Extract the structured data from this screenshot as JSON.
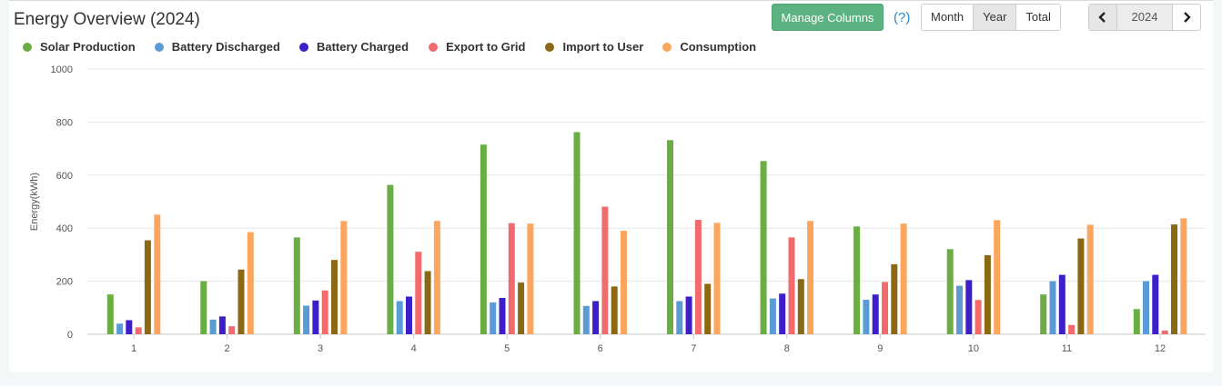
{
  "header": {
    "title": "Energy Overview (2024)",
    "manage_columns_label": "Manage Columns",
    "help_label": "(?)",
    "period_tabs": [
      {
        "label": "Month",
        "active": false
      },
      {
        "label": "Year",
        "active": true
      },
      {
        "label": "Total",
        "active": false
      }
    ],
    "year_value": "2024",
    "prev_icon": "chevron-left-icon",
    "next_icon": "chevron-right-icon"
  },
  "colors": {
    "accent_button": "#5cb381",
    "help_link": "#2a88c9"
  },
  "chart_data": {
    "type": "bar",
    "title": "",
    "xlabel": "",
    "ylabel": "Energy(kWh)",
    "ylim": [
      0,
      1000
    ],
    "yticks": [
      0,
      200,
      400,
      600,
      800,
      1000
    ],
    "grid": true,
    "legend_position": "top-left",
    "categories": [
      "1",
      "2",
      "3",
      "4",
      "5",
      "6",
      "7",
      "8",
      "9",
      "10",
      "11",
      "12"
    ],
    "series": [
      {
        "name": "Solar Production",
        "color": "#6aad43",
        "values": [
          150,
          200,
          365,
          563,
          715,
          762,
          732,
          653,
          406,
          321,
          150,
          95
        ]
      },
      {
        "name": "Battery Discharged",
        "color": "#5b9bd5",
        "values": [
          40,
          55,
          108,
          125,
          120,
          107,
          125,
          135,
          130,
          183,
          200,
          200
        ]
      },
      {
        "name": "Battery Charged",
        "color": "#3c1fc9",
        "values": [
          53,
          67,
          127,
          142,
          137,
          125,
          142,
          153,
          150,
          204,
          224,
          224
        ]
      },
      {
        "name": "Export to Grid",
        "color": "#f06a6e",
        "values": [
          26,
          30,
          165,
          311,
          419,
          481,
          431,
          365,
          197,
          129,
          35,
          14
        ]
      },
      {
        "name": "Import to User",
        "color": "#8b6914",
        "values": [
          354,
          244,
          280,
          238,
          195,
          180,
          190,
          208,
          264,
          298,
          361,
          414
        ]
      },
      {
        "name": "Consumption",
        "color": "#fba55e",
        "values": [
          451,
          385,
          427,
          427,
          417,
          390,
          420,
          427,
          417,
          430,
          413,
          437
        ]
      }
    ]
  }
}
